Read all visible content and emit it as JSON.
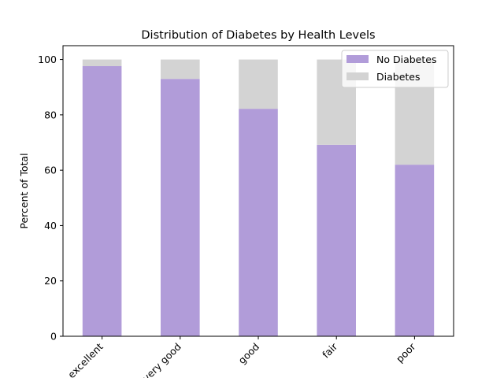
{
  "chart_data": {
    "type": "bar",
    "stacked": true,
    "title": "Distribution of Diabetes by Health Levels",
    "xlabel": "",
    "ylabel": "Percent of Total",
    "categories": [
      "excellent",
      "very good",
      "good",
      "fair",
      "poor"
    ],
    "series": [
      {
        "name": "No Diabetes",
        "color": "#b19cd9",
        "values": [
          97.6,
          93.0,
          82.2,
          69.2,
          62.0
        ]
      },
      {
        "name": "Diabetes",
        "color": "#d3d3d3",
        "values": [
          2.4,
          7.0,
          17.8,
          30.8,
          38.0
        ]
      }
    ],
    "ylim": [
      0,
      105
    ],
    "yticks": [
      0,
      20,
      40,
      60,
      80,
      100
    ],
    "grid": false,
    "legend_position": "top-right"
  }
}
